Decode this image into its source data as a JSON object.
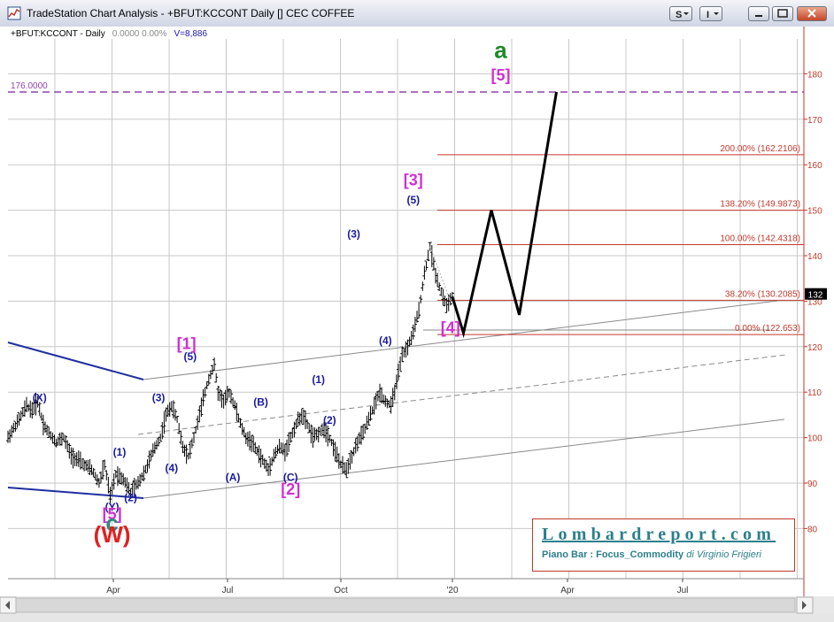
{
  "window": {
    "title": "TradeStation Chart Analysis - +BFUT:KCCONT Daily [] CEC COFFEE",
    "symbol": "+BFUT:KCCONT - Daily",
    "ohl": "0.0000  0.00%",
    "volume": "V=8,886",
    "buttons": [
      "S",
      "I",
      "minimize",
      "restore",
      "close"
    ]
  },
  "chart_data": {
    "type": "bar",
    "title": "+BFUT:KCCONT - Daily",
    "instrument": "CEC COFFEE",
    "y_axis": {
      "ticks": [
        80,
        90,
        100,
        110,
        120,
        130,
        140,
        150,
        160,
        170,
        180
      ],
      "side": "right"
    },
    "x_axis": {
      "labels": [
        "Apr",
        "Jul",
        "Oct",
        "'20",
        "Apr",
        "Jul"
      ]
    },
    "grid": true,
    "last_price": "132",
    "price_path": [
      [
        0,
        100
      ],
      [
        6,
        104
      ],
      [
        10,
        107
      ],
      [
        13,
        106
      ],
      [
        16,
        108
      ],
      [
        19,
        103
      ],
      [
        22,
        101
      ],
      [
        26,
        99
      ],
      [
        30,
        100
      ],
      [
        34,
        96
      ],
      [
        38,
        95
      ],
      [
        41,
        94
      ],
      [
        45,
        93
      ],
      [
        49,
        90
      ],
      [
        52,
        94
      ],
      [
        55,
        87
      ],
      [
        58,
        92
      ],
      [
        62,
        91
      ],
      [
        66,
        88
      ],
      [
        70,
        90
      ],
      [
        74,
        93
      ],
      [
        78,
        97
      ],
      [
        82,
        100
      ],
      [
        85,
        105
      ],
      [
        88,
        107
      ],
      [
        91,
        104
      ],
      [
        94,
        98
      ],
      [
        97,
        96
      ],
      [
        100,
        100
      ],
      [
        103,
        105
      ],
      [
        106,
        110
      ],
      [
        108,
        113
      ],
      [
        111,
        116
      ],
      [
        113,
        110
      ],
      [
        116,
        108
      ],
      [
        119,
        110
      ],
      [
        122,
        107
      ],
      [
        125,
        103
      ],
      [
        128,
        100
      ],
      [
        131,
        99
      ],
      [
        134,
        97
      ],
      [
        137,
        95
      ],
      [
        140,
        93
      ],
      [
        143,
        96
      ],
      [
        146,
        98
      ],
      [
        149,
        97
      ],
      [
        152,
        100
      ],
      [
        155,
        103
      ],
      [
        158,
        105
      ],
      [
        161,
        103
      ],
      [
        164,
        100
      ],
      [
        167,
        101
      ],
      [
        170,
        102
      ],
      [
        173,
        100
      ],
      [
        176,
        97
      ],
      [
        179,
        94
      ],
      [
        182,
        93
      ],
      [
        185,
        96
      ],
      [
        188,
        99
      ],
      [
        191,
        101
      ],
      [
        194,
        104
      ],
      [
        197,
        107
      ],
      [
        200,
        110
      ],
      [
        203,
        108
      ],
      [
        206,
        107
      ],
      [
        209,
        112
      ],
      [
        212,
        118
      ],
      [
        215,
        120
      ],
      [
        218,
        123
      ],
      [
        221,
        128
      ],
      [
        224,
        136
      ],
      [
        227,
        142
      ],
      [
        230,
        136
      ],
      [
        233,
        132
      ],
      [
        236,
        129
      ],
      [
        239,
        131
      ]
    ],
    "projection_path": [
      [
        239,
        131
      ],
      [
        245,
        123
      ],
      [
        260,
        150
      ],
      [
        275,
        127
      ],
      [
        295,
        176
      ]
    ],
    "fib_levels": [
      {
        "label": "200.00% (162.2106)",
        "value": 162.2106
      },
      {
        "label": "138.20% (149.9873)",
        "value": 149.9873
      },
      {
        "label": "100.00% (142.4318)",
        "value": 142.4318
      },
      {
        "label": "38.20% (130.2085)",
        "value": 130.2085
      },
      {
        "label": "0.00% (122.653)",
        "value": 122.653
      }
    ],
    "target_line": {
      "label": "176.0000",
      "value": 176
    },
    "wave_labels": [
      {
        "text": "(X)",
        "color": "#1a1aa0",
        "x": 17,
        "y": 108,
        "size": "s"
      },
      {
        "text": "(Y)",
        "color": "#1a1aa0",
        "x": 56,
        "y": 84,
        "size": "s"
      },
      {
        "text": "[5]",
        "color": "#d02fd0",
        "x": 56,
        "y": 82,
        "size": "m"
      },
      {
        "text": "c",
        "color": "#2e8b7a",
        "x": 56,
        "y": 79.5,
        "size": "l"
      },
      {
        "text": "(W)",
        "color": "#e02020",
        "x": 56,
        "y": 77,
        "size": "l"
      },
      {
        "text": "(1)",
        "color": "#1a1aa0",
        "x": 60,
        "y": 96,
        "size": "s"
      },
      {
        "text": "(2)",
        "color": "#1a1aa0",
        "x": 66,
        "y": 86,
        "size": "s"
      },
      {
        "text": "(3)",
        "color": "#1a1aa0",
        "x": 81,
        "y": 108,
        "size": "s"
      },
      {
        "text": "(4)",
        "color": "#1a1aa0",
        "x": 88,
        "y": 92.5,
        "size": "s"
      },
      {
        "text": "(5)",
        "color": "#1a1aa0",
        "x": 98,
        "y": 117,
        "size": "s"
      },
      {
        "text": "[1]",
        "color": "#d02fd0",
        "x": 96,
        "y": 119.5,
        "size": "m"
      },
      {
        "text": "(A)",
        "color": "#1a1aa0",
        "x": 121,
        "y": 90.5,
        "size": "s"
      },
      {
        "text": "(B)",
        "color": "#1a1aa0",
        "x": 136,
        "y": 107,
        "size": "s"
      },
      {
        "text": "(C)",
        "color": "#1a1aa0",
        "x": 152,
        "y": 90.5,
        "size": "s"
      },
      {
        "text": "[2]",
        "color": "#d02fd0",
        "x": 152,
        "y": 87.5,
        "size": "m"
      },
      {
        "text": "(1)",
        "color": "#1a1aa0",
        "x": 167,
        "y": 112,
        "size": "s"
      },
      {
        "text": "(2)",
        "color": "#1a1aa0",
        "x": 173,
        "y": 103,
        "size": "s"
      },
      {
        "text": "(3)",
        "color": "#1a1aa0",
        "x": 186,
        "y": 144,
        "size": "s"
      },
      {
        "text": "(4)",
        "color": "#1a1aa0",
        "x": 203,
        "y": 120.5,
        "size": "s"
      },
      {
        "text": "(5)",
        "color": "#1a1aa0",
        "x": 218,
        "y": 151.5,
        "size": "s"
      },
      {
        "text": "[3]",
        "color": "#d02fd0",
        "x": 218,
        "y": 155.5,
        "size": "m"
      },
      {
        "text": "[4]",
        "color": "#d02fd0",
        "x": 238,
        "y": 123,
        "size": "m"
      },
      {
        "text": "[5]",
        "color": "#d02fd0",
        "x": 265,
        "y": 178.5,
        "size": "m"
      },
      {
        "text": "a",
        "color": "#1f8a2a",
        "x": 265,
        "y": 183.5,
        "size": "l"
      }
    ]
  },
  "watermark": {
    "title": "Lombardreport.com",
    "subtitle_bold": "Piano Bar : Focus_Commodity",
    "subtitle_italic": "di Virginio Frigieri"
  },
  "colors": {
    "fib_line": "#c0392b",
    "axis_text": "#c0392b",
    "target_line": "#8e44ad",
    "bars": "#000000",
    "projection": "#000000",
    "channel_blue": "#1f2fa0",
    "channel_gray": "#8a8a8a"
  }
}
